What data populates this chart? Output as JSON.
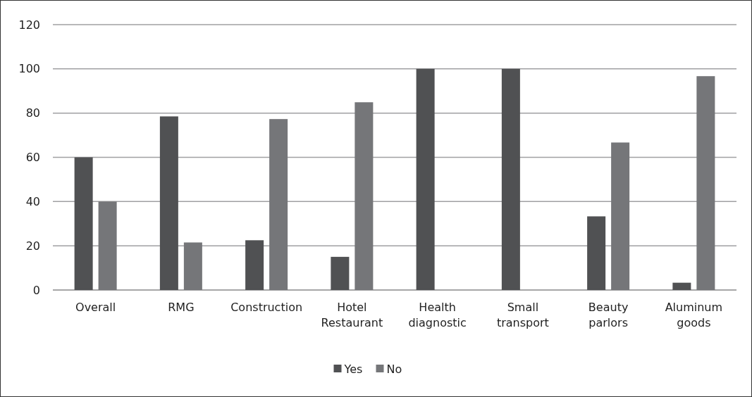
{
  "chart_data": {
    "type": "bar",
    "categories": [
      "Overall",
      "RMG",
      "Construction",
      "Hotel Restaurant",
      "Health diagnostic",
      "Small transport",
      "Beauty parlors",
      "Aluminum goods"
    ],
    "series": [
      {
        "name": "Yes",
        "color": "#505153",
        "values": [
          60,
          78.5,
          22.5,
          15,
          100,
          100,
          33.3,
          3.3
        ]
      },
      {
        "name": "No",
        "color": "#757679",
        "values": [
          40,
          21.5,
          77.3,
          84.9,
          0,
          0,
          66.7,
          96.7
        ]
      }
    ],
    "ylim": [
      0,
      120
    ],
    "yticks": [
      0,
      20,
      40,
      60,
      80,
      100,
      120
    ],
    "grid": "y",
    "legend": "bottom"
  }
}
